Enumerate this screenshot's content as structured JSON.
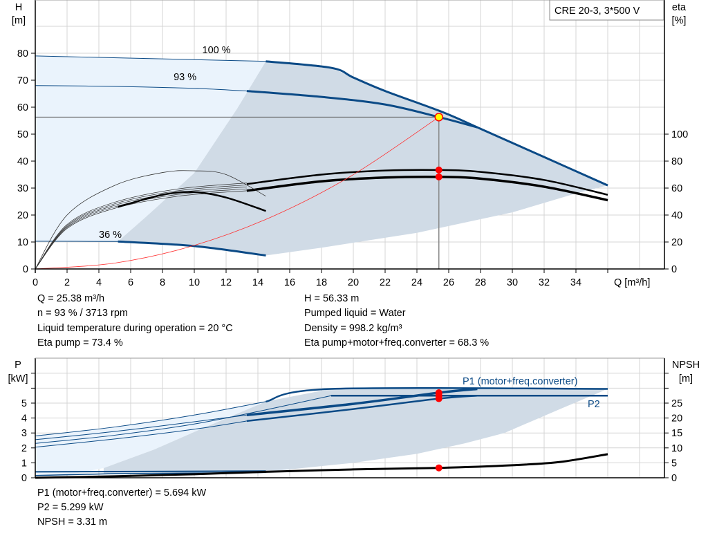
{
  "chart_data": [
    {
      "type": "line",
      "model_label": "CRE 20-3, 3*500 V",
      "xlabel": "Q [m³/h]",
      "ylabel": "H\n[m]",
      "ylabel_right": "eta\n[%]",
      "xlim": [
        0,
        39
      ],
      "ylim": [
        0,
        100
      ],
      "ylim_right": [
        0,
        200
      ],
      "xticks": [
        0,
        2,
        4,
        6,
        8,
        10,
        12,
        14,
        16,
        18,
        20,
        22,
        24,
        26,
        28,
        30,
        32,
        34
      ],
      "yticks": [
        0,
        10,
        20,
        30,
        40,
        50,
        60,
        70,
        80
      ],
      "yticks_right": [
        0,
        20,
        40,
        60,
        80,
        100
      ],
      "grid": true,
      "speed_labels": [
        {
          "text": "100 %",
          "q": 10.5,
          "h": 80
        },
        {
          "text": "93 %",
          "q": 8.7,
          "h": 70
        },
        {
          "text": "36 %",
          "q": 4,
          "h": 11.5
        }
      ],
      "series": [
        {
          "kind": "H",
          "speed": "100 %",
          "points": [
            [
              0,
              79
            ],
            [
              14.5,
              77
            ],
            [
              18.6,
              74.6
            ],
            [
              20,
              71
            ],
            [
              22,
              66
            ],
            [
              25.6,
              58.2
            ],
            [
              28,
              52
            ],
            [
              32,
              41.5
            ],
            [
              36,
              31
            ]
          ]
        },
        {
          "kind": "H",
          "speed": "93 %",
          "points": [
            [
              0,
              68
            ],
            [
              5,
              67.7
            ],
            [
              10,
              67
            ],
            [
              13.3,
              66
            ],
            [
              18,
              63.8
            ],
            [
              22,
              61
            ],
            [
              25.38,
              56.33
            ],
            [
              27.8,
              52.5
            ]
          ]
        },
        {
          "kind": "H",
          "speed": "36 %",
          "points": [
            [
              0,
              10.3
            ],
            [
              5.2,
              10.2
            ],
            [
              10,
              8.5
            ],
            [
              14.5,
              5
            ]
          ]
        },
        {
          "kind": "eta",
          "points": [
            [
              13.3,
              63
            ],
            [
              18,
              70
            ],
            [
              22,
              73
            ],
            [
              25.38,
              73.4
            ],
            [
              28,
              72
            ],
            [
              32,
              66
            ],
            [
              36,
              55
            ]
          ]
        },
        {
          "kind": "eta",
          "points": [
            [
              13.3,
              58
            ],
            [
              18,
              65
            ],
            [
              22,
              67.8
            ],
            [
              25.38,
              68.3
            ],
            [
              28,
              67
            ],
            [
              32,
              61
            ],
            [
              36,
              51
            ]
          ]
        },
        {
          "kind": "eta-36",
          "points": [
            [
              0,
              0
            ],
            [
              2,
              40
            ],
            [
              5,
              62
            ],
            [
              8,
              71.5
            ],
            [
              10,
              72.8
            ],
            [
              12,
              70
            ],
            [
              14.5,
              54
            ]
          ]
        },
        {
          "kind": "eta-36",
          "points": [
            [
              5.2,
              46
            ],
            [
              8,
              55
            ],
            [
              10,
              57
            ],
            [
              12,
              53
            ],
            [
              14.5,
              43
            ]
          ]
        },
        {
          "kind": "system",
          "points": [
            [
              0,
              0
            ],
            [
              5,
              2.19
            ],
            [
              10,
              8.74
            ],
            [
              15,
              19.68
            ],
            [
              20,
              34.98
            ],
            [
              25.38,
              56.33
            ]
          ]
        }
      ],
      "operating_point": {
        "q": 25.38,
        "h": 56.33,
        "eta_pump": 73.4,
        "eta_total": 68.3
      },
      "readout": {
        "q": "Q = 25.38 m³/h",
        "n": "n = 93 % / 3713 rpm",
        "temp": "Liquid temperature during operation = 20 °C",
        "eta_pump": "Eta pump = 73.4 %",
        "h": "H = 56.33 m",
        "liquid": "Pumped liquid = Water",
        "density": "Density = 998.2 kg/m³",
        "eta_total": "Eta pump+motor+freq.converter = 68.3 %"
      }
    },
    {
      "type": "line",
      "ylabel": "P\n[kW]",
      "ylabel_right": "NPSH\n[m]",
      "xlim": [
        0,
        39
      ],
      "ylim": [
        0,
        8
      ],
      "ylim_right": [
        0,
        40
      ],
      "yticks": [
        0,
        1,
        2,
        3,
        4,
        5
      ],
      "yticks_right": [
        0,
        5,
        10,
        15,
        20,
        25
      ],
      "grid": true,
      "series": [
        {
          "name": "P1 (motor+freq.converter)",
          "points": [
            [
              0,
              2.8
            ],
            [
              5,
              3.4
            ],
            [
              10,
              4.2
            ],
            [
              14.5,
              5.1
            ],
            [
              18.6,
              5.95
            ],
            [
              36,
              5.95
            ]
          ]
        },
        {
          "name": "P2",
          "points": [
            [
              0,
              2.3
            ],
            [
              5,
              2.85
            ],
            [
              10,
              3.6
            ],
            [
              14.5,
              4.55
            ],
            [
              18.6,
              5.5
            ],
            [
              36,
              5.5
            ]
          ]
        },
        {
          "kind": "P1-93",
          "points": [
            [
              0,
              2.55
            ],
            [
              5,
              3.1
            ],
            [
              10,
              3.75
            ],
            [
              13.3,
              4.2
            ],
            [
              20,
              4.95
            ],
            [
              25.38,
              5.694
            ],
            [
              27.8,
              5.95
            ]
          ]
        },
        {
          "kind": "P2-93",
          "points": [
            [
              0,
              2.05
            ],
            [
              5,
              2.6
            ],
            [
              10,
              3.25
            ],
            [
              13.3,
              3.8
            ],
            [
              20,
              4.6
            ],
            [
              25.38,
              5.299
            ],
            [
              27.8,
              5.5
            ]
          ]
        },
        {
          "kind": "P-36",
          "points": [
            [
              0,
              0.4
            ],
            [
              14.5,
              0.45
            ]
          ]
        },
        {
          "kind": "P-36",
          "points": [
            [
              0,
              0.15
            ],
            [
              5,
              0.28
            ],
            [
              14.5,
              0.35
            ]
          ]
        },
        {
          "kind": "NPSH",
          "points": [
            [
              0,
              0
            ],
            [
              5,
              0.5
            ],
            [
              10,
              1.2
            ],
            [
              14.5,
              2
            ],
            [
              20,
              2.8
            ],
            [
              25.38,
              3.31
            ],
            [
              30,
              4.2
            ],
            [
              33,
              5.3
            ],
            [
              36,
              7.9
            ]
          ]
        }
      ],
      "operating_point": {
        "q": 25.38,
        "p1": 5.694,
        "p2": 5.299,
        "npsh": 3.31
      },
      "readout": {
        "p1": "P1 (motor+freq.converter) = 5.694 kW",
        "p2": "P2 = 5.299 kW",
        "npsh": "NPSH = 3.31 m"
      }
    }
  ],
  "colors": {
    "curve": "#0b4a86",
    "region_dark": "#d0dbe6",
    "region_light": "#eaf3fc",
    "grid": "#d4d4d4",
    "marker": "#ff0000",
    "op_point": "#ffff00",
    "system_curve": "#ff3030"
  }
}
